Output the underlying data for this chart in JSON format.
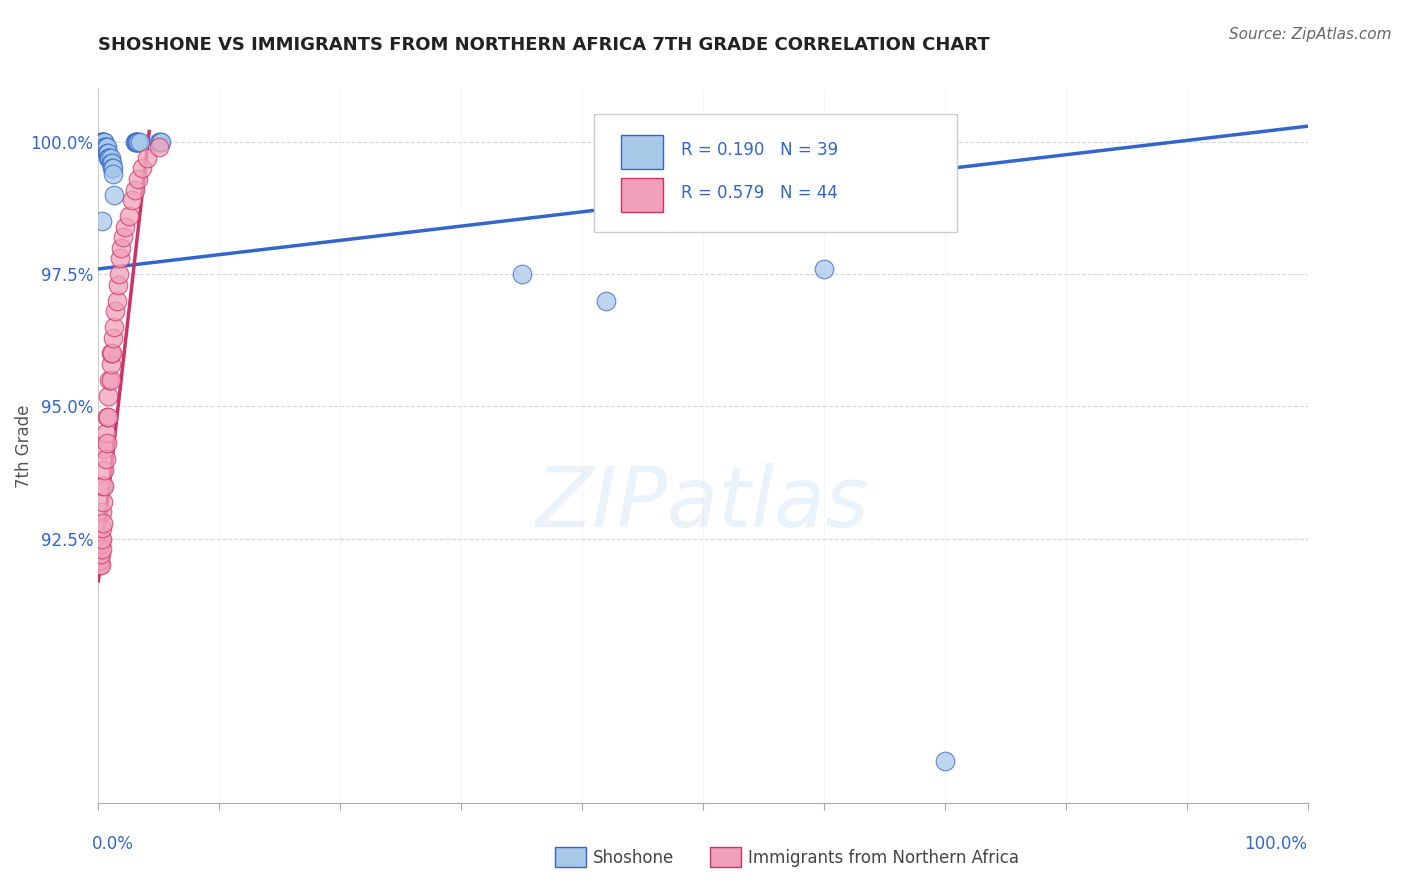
{
  "title": "SHOSHONE VS IMMIGRANTS FROM NORTHERN AFRICA 7TH GRADE CORRELATION CHART",
  "source": "Source: ZipAtlas.com",
  "ylabel": "7th Grade",
  "yticks": [
    1.0,
    0.975,
    0.95,
    0.925
  ],
  "ytick_labels": [
    "100.0%",
    "97.5%",
    "95.0%",
    "92.5%"
  ],
  "xlim": [
    0.0,
    1.0
  ],
  "ylim": [
    0.875,
    1.01
  ],
  "color_blue": "#a8c8e8",
  "color_pink": "#f0a0b8",
  "line_color_blue": "#3366cc",
  "line_color_pink": "#cc3366",
  "blue_line_x": [
    0.0,
    1.0
  ],
  "blue_line_y": [
    0.976,
    1.003
  ],
  "pink_line_x": [
    0.0,
    0.042
  ],
  "pink_line_y": [
    0.917,
    1.002
  ],
  "legend_r1": "R = 0.190",
  "legend_n1": "N = 39",
  "legend_r2": "R = 0.579",
  "legend_n2": "N = 44",
  "legend_label1": "Shoshone",
  "legend_label2": "Immigrants from Northern Africa",
  "watermark_text": "ZIPatlas",
  "shoshone_x": [
    0.002,
    0.003,
    0.003,
    0.004,
    0.004,
    0.004,
    0.005,
    0.005,
    0.005,
    0.006,
    0.006,
    0.007,
    0.007,
    0.008,
    0.008,
    0.009,
    0.009,
    0.01,
    0.01,
    0.011,
    0.011,
    0.012,
    0.012,
    0.013,
    0.03,
    0.031,
    0.031,
    0.032,
    0.032,
    0.033,
    0.034,
    0.05,
    0.051,
    0.052,
    0.35,
    0.42,
    0.6,
    0.7,
    0.003
  ],
  "shoshone_y": [
    1.0,
    1.0,
    1.0,
    1.0,
    1.0,
    0.999,
    1.0,
    1.0,
    0.999,
    0.999,
    0.999,
    0.999,
    0.998,
    0.998,
    0.997,
    0.997,
    0.997,
    0.997,
    0.996,
    0.996,
    0.995,
    0.995,
    0.994,
    0.99,
    1.0,
    1.0,
    1.0,
    1.0,
    1.0,
    1.0,
    1.0,
    1.0,
    1.0,
    1.0,
    0.975,
    0.97,
    0.976,
    0.883,
    0.985
  ],
  "immigrants_x": [
    0.001,
    0.001,
    0.002,
    0.002,
    0.002,
    0.002,
    0.003,
    0.003,
    0.003,
    0.003,
    0.004,
    0.004,
    0.004,
    0.005,
    0.005,
    0.005,
    0.006,
    0.006,
    0.007,
    0.007,
    0.008,
    0.008,
    0.009,
    0.01,
    0.01,
    0.01,
    0.011,
    0.012,
    0.013,
    0.014,
    0.015,
    0.016,
    0.017,
    0.018,
    0.019,
    0.02,
    0.022,
    0.025,
    0.028,
    0.03,
    0.033,
    0.036,
    0.04,
    0.05
  ],
  "immigrants_y": [
    0.92,
    0.921,
    0.92,
    0.922,
    0.924,
    0.925,
    0.923,
    0.925,
    0.927,
    0.93,
    0.928,
    0.932,
    0.935,
    0.935,
    0.938,
    0.942,
    0.94,
    0.945,
    0.943,
    0.948,
    0.948,
    0.952,
    0.955,
    0.955,
    0.958,
    0.96,
    0.96,
    0.963,
    0.965,
    0.968,
    0.97,
    0.973,
    0.975,
    0.978,
    0.98,
    0.982,
    0.984,
    0.986,
    0.989,
    0.991,
    0.993,
    0.995,
    0.997,
    0.999
  ]
}
